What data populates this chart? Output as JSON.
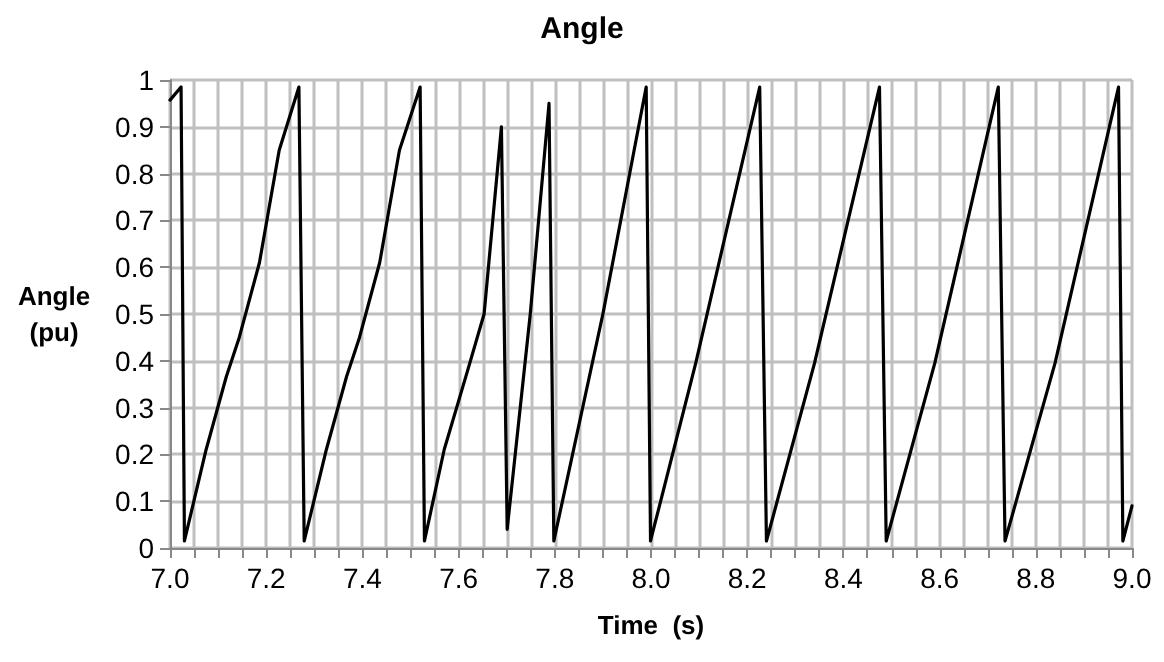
{
  "chart_data": {
    "type": "line",
    "title": "Angle",
    "xlabel": "Time  (s)",
    "ylabel": "Angle (pu)",
    "x": [
      7.0,
      7.023,
      7.03,
      7.075,
      7.117,
      7.144,
      7.186,
      7.227,
      7.268,
      7.279,
      7.325,
      7.367,
      7.394,
      7.436,
      7.477,
      7.52,
      7.529,
      7.57,
      7.619,
      7.653,
      7.689,
      7.701,
      7.749,
      7.788,
      7.798,
      7.9,
      7.99,
      7.999,
      8.093,
      8.226,
      8.24,
      8.34,
      8.475,
      8.489,
      8.59,
      8.722,
      8.736,
      8.84,
      8.972,
      8.981,
      9.0
    ],
    "series": [
      {
        "color": "#000000",
        "values": [
          0.957,
          0.985,
          0.015,
          0.21,
          0.366,
          0.45,
          0.61,
          0.85,
          0.985,
          0.015,
          0.21,
          0.366,
          0.45,
          0.61,
          0.85,
          0.985,
          0.015,
          0.21,
          0.38,
          0.5,
          0.9,
          0.04,
          0.5,
          0.95,
          0.015,
          0.5,
          0.985,
          0.015,
          0.395,
          0.985,
          0.015,
          0.395,
          0.985,
          0.015,
          0.395,
          0.985,
          0.015,
          0.395,
          0.985,
          0.015,
          0.09
        ]
      }
    ],
    "xlim": [
      7.0,
      9.0
    ],
    "xticks": [
      {
        "value": 7.0,
        "label": "7.0"
      },
      {
        "value": 7.05,
        "label": null
      },
      {
        "value": 7.1,
        "label": null
      },
      {
        "value": 7.15,
        "label": null
      },
      {
        "value": 7.2,
        "label": "7.2"
      },
      {
        "value": 7.25,
        "label": null
      },
      {
        "value": 7.3,
        "label": null
      },
      {
        "value": 7.35,
        "label": null
      },
      {
        "value": 7.4,
        "label": "7.4"
      },
      {
        "value": 7.45,
        "label": null
      },
      {
        "value": 7.5,
        "label": null
      },
      {
        "value": 7.55,
        "label": null
      },
      {
        "value": 7.6,
        "label": "7.6"
      },
      {
        "value": 7.65,
        "label": null
      },
      {
        "value": 7.7,
        "label": null
      },
      {
        "value": 7.75,
        "label": null
      },
      {
        "value": 7.8,
        "label": "7.8"
      },
      {
        "value": 7.85,
        "label": null
      },
      {
        "value": 7.9,
        "label": null
      },
      {
        "value": 7.95,
        "label": null
      },
      {
        "value": 8.0,
        "label": "8.0"
      },
      {
        "value": 8.05,
        "label": null
      },
      {
        "value": 8.1,
        "label": null
      },
      {
        "value": 8.15,
        "label": null
      },
      {
        "value": 8.2,
        "label": "8.2"
      },
      {
        "value": 8.25,
        "label": null
      },
      {
        "value": 8.3,
        "label": null
      },
      {
        "value": 8.35,
        "label": null
      },
      {
        "value": 8.4,
        "label": "8.4"
      },
      {
        "value": 8.45,
        "label": null
      },
      {
        "value": 8.5,
        "label": null
      },
      {
        "value": 8.55,
        "label": null
      },
      {
        "value": 8.6,
        "label": "8.6"
      },
      {
        "value": 8.65,
        "label": null
      },
      {
        "value": 8.7,
        "label": null
      },
      {
        "value": 8.75,
        "label": null
      },
      {
        "value": 8.8,
        "label": "8.8"
      },
      {
        "value": 8.85,
        "label": null
      },
      {
        "value": 8.9,
        "label": null
      },
      {
        "value": 8.95,
        "label": null
      },
      {
        "value": 9.0,
        "label": "9.0"
      }
    ],
    "ylim": [
      0,
      1
    ],
    "yticks": [
      0,
      0.1,
      0.2,
      0.3,
      0.4,
      0.5,
      0.6,
      0.7,
      0.8,
      0.9,
      1
    ],
    "grid": true,
    "marker": "none",
    "line_style": "solid"
  }
}
